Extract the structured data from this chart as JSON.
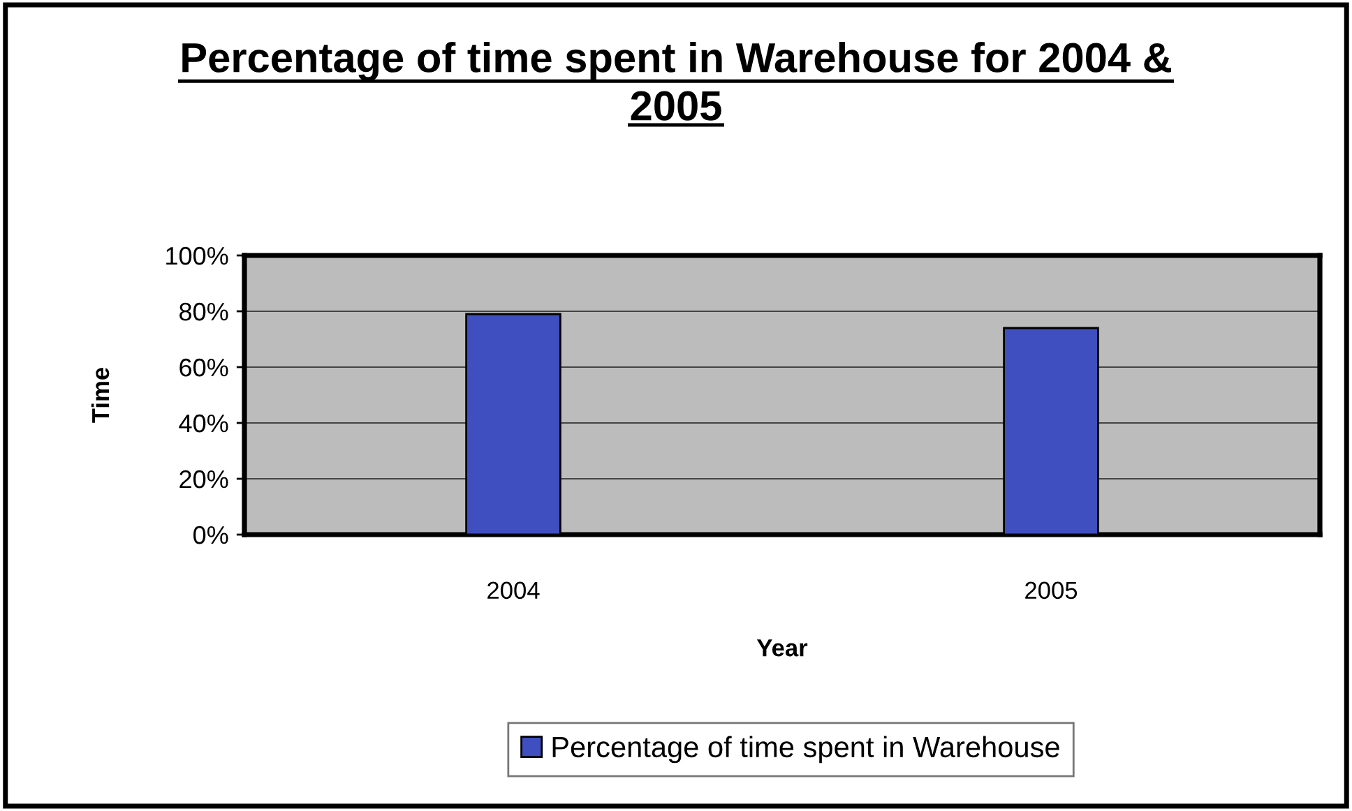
{
  "chart_data": {
    "type": "bar",
    "title": "Percentage of time spent in Warehouse for 2004 & 2005",
    "xlabel": "Year",
    "ylabel": "Time",
    "categories": [
      "2004",
      "2005"
    ],
    "series": [
      {
        "name": "Percentage of time spent in Warehouse",
        "color": "#3f4fc0",
        "values": [
          79,
          74
        ]
      }
    ],
    "ylim": [
      0,
      100
    ],
    "yticks": [
      {
        "value": 0,
        "label": "0%"
      },
      {
        "value": 20,
        "label": "20%"
      },
      {
        "value": 40,
        "label": "40%"
      },
      {
        "value": 60,
        "label": "60%"
      },
      {
        "value": 80,
        "label": "80%"
      },
      {
        "value": 100,
        "label": "100%"
      }
    ],
    "grid": "y",
    "legend": "bottom"
  }
}
